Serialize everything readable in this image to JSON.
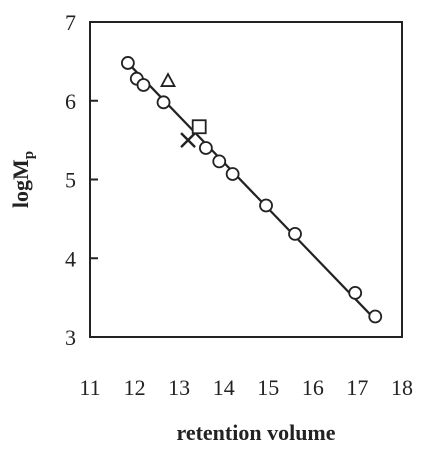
{
  "chart_data": {
    "type": "scatter",
    "xlabel": "retention volume",
    "ylabel_main": "logM",
    "ylabel_sub": "p",
    "xlim": [
      11,
      18
    ],
    "ylim": [
      3,
      7
    ],
    "xticks": [
      11,
      12,
      13,
      14,
      15,
      16,
      17,
      18
    ],
    "yticks": [
      3,
      4,
      5,
      6,
      7
    ],
    "grid": false,
    "series": [
      {
        "marker": "circle",
        "x": [
          11.85,
          12.05,
          12.2,
          12.65,
          13.6,
          13.9,
          14.2,
          14.95,
          15.6,
          16.95,
          17.4
        ],
        "y": [
          6.48,
          6.28,
          6.2,
          5.98,
          5.4,
          5.23,
          5.07,
          4.67,
          4.31,
          3.56,
          3.26
        ]
      },
      {
        "marker": "triangle",
        "x": [
          12.75
        ],
        "y": [
          6.25
        ]
      },
      {
        "marker": "square",
        "x": [
          13.45
        ],
        "y": [
          5.67
        ]
      },
      {
        "marker": "cross",
        "x": [
          13.2
        ],
        "y": [
          5.5
        ]
      }
    ],
    "fit_line": {
      "x": [
        11.85,
        17.4
      ],
      "y": [
        6.48,
        3.22
      ]
    }
  }
}
